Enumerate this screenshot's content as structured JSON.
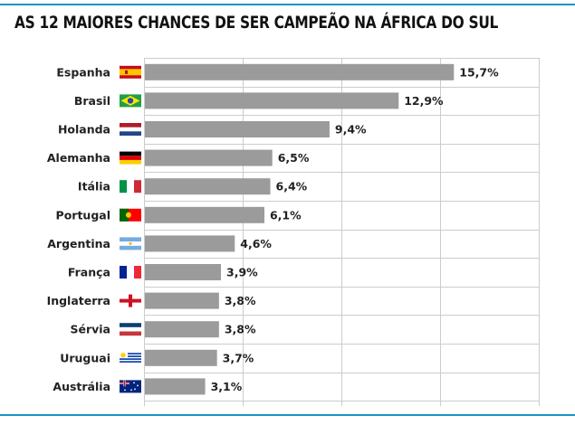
{
  "chart_data": {
    "type": "bar",
    "orientation": "horizontal",
    "title": "AS 12 MAIORES CHANCES DE SER CAMPEÃO NA ÁFRICA DO SUL",
    "xlabel": "",
    "ylabel": "",
    "xlim": [
      0,
      20
    ],
    "grid": true,
    "gridlines_at": [
      0,
      5,
      10,
      15,
      20
    ],
    "bar_color": "#9b9b9b",
    "accent_color": "#1a94c4",
    "categories": [
      "Espanha",
      "Brasil",
      "Holanda",
      "Alemanha",
      "Itália",
      "Portugal",
      "Argentina",
      "França",
      "Inglaterra",
      "Sérvia",
      "Uruguai",
      "Austrália"
    ],
    "values": [
      15.7,
      12.9,
      9.4,
      6.5,
      6.4,
      6.1,
      4.6,
      3.9,
      3.8,
      3.8,
      3.7,
      3.1
    ],
    "value_labels": [
      "15,7%",
      "12,9%",
      "9,4%",
      "6,5%",
      "6,4%",
      "6,1%",
      "4,6%",
      "3,9%",
      "3,8%",
      "3,8%",
      "3,7%",
      "3,1%"
    ],
    "flags": [
      "spain-flag",
      "brazil-flag",
      "netherlands-flag",
      "germany-flag",
      "italy-flag",
      "portugal-flag",
      "argentina-flag",
      "france-flag",
      "england-flag",
      "serbia-flag",
      "uruguay-flag",
      "australia-flag"
    ]
  }
}
